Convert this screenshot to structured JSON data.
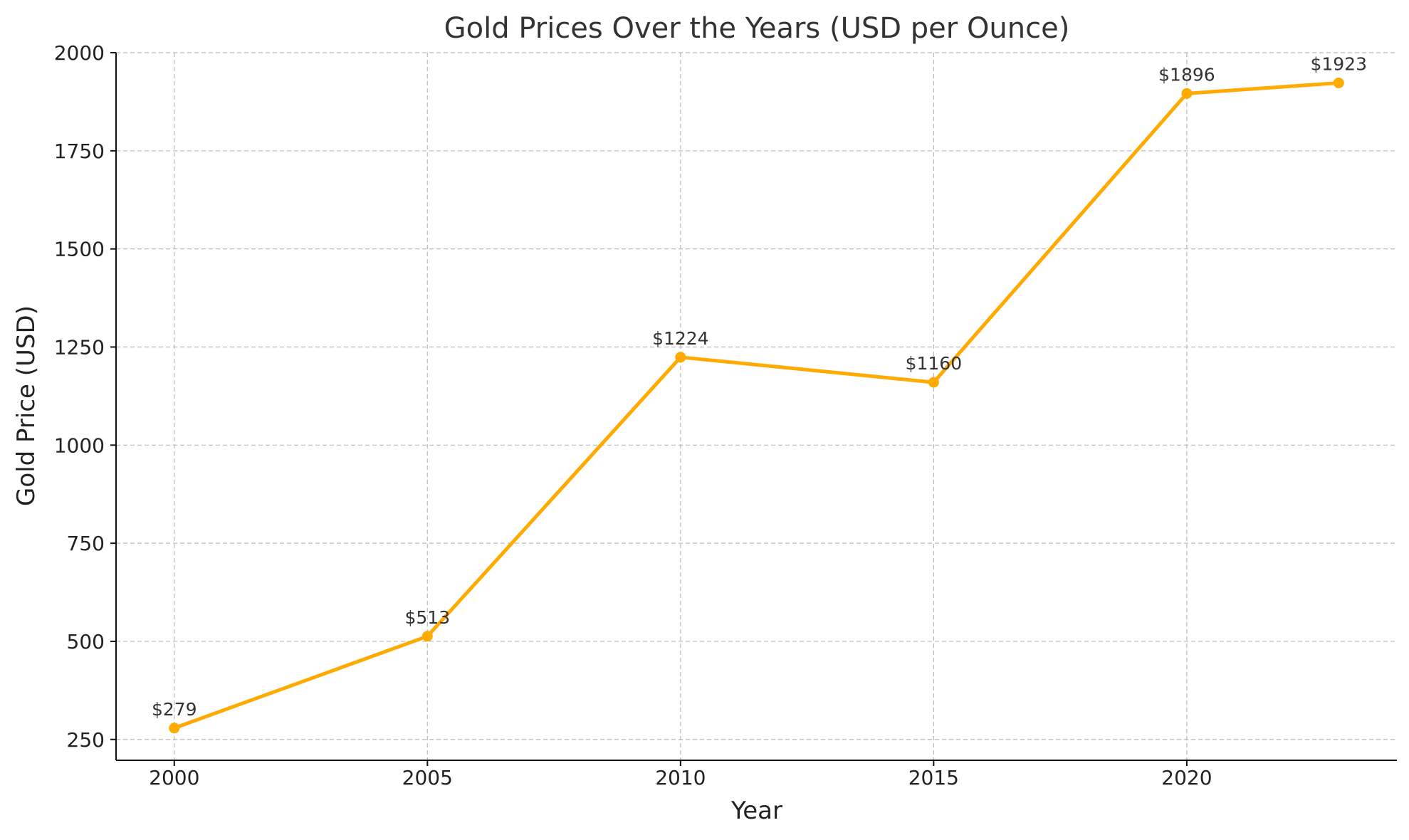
{
  "chart_data": {
    "type": "line",
    "title": "Gold Prices Over the Years (USD per Ounce)",
    "xlabel": "Year",
    "ylabel": "Gold Price (USD)",
    "x": [
      2000,
      2005,
      2010,
      2015,
      2020,
      2023
    ],
    "series": [
      {
        "values": [
          279,
          513,
          1224,
          1160,
          1896,
          1923
        ],
        "labels": [
          "$279",
          "$513",
          "$1224",
          "$1160",
          "$1896",
          "$1923"
        ],
        "color": "#ffaa00"
      }
    ],
    "xticks": [
      2000,
      2005,
      2010,
      2015,
      2020
    ],
    "xtick_labels": [
      "2000",
      "2005",
      "2010",
      "2015",
      "2020"
    ],
    "yticks": [
      250,
      500,
      750,
      1000,
      1250,
      1500,
      1750,
      2000
    ],
    "ytick_labels": [
      "250",
      "500",
      "750",
      "1000",
      "1250",
      "1500",
      "1750",
      "2000"
    ],
    "xlim": [
      1998.85,
      2024.15
    ],
    "ylim": [
      197,
      2000
    ],
    "grid": true,
    "legend": "none"
  },
  "colors": {
    "line": "#ffaa00",
    "grid": "#b9b9b9",
    "axis": "#111111",
    "background": "#ffffff"
  }
}
